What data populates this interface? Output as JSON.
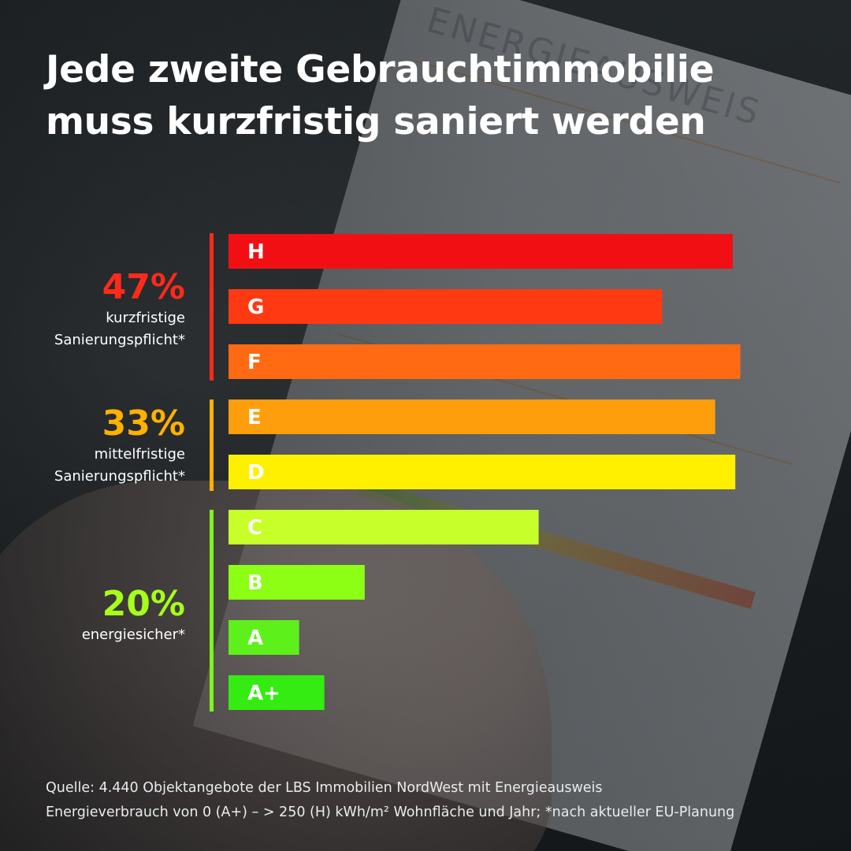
{
  "title": {
    "line1": "Jede zweite Gebrauchtimmobilie",
    "line2": "muss kurzfristig saniert werden"
  },
  "groups": [
    {
      "pct": "47%",
      "desc1": "kurzfristige",
      "desc2": "Sanierungspflicht*",
      "color": "#ff2a1a"
    },
    {
      "pct": "33%",
      "desc1": "mittelfristige",
      "desc2": "Sanierungspflicht*",
      "color": "#ffb100"
    },
    {
      "pct": "20%",
      "desc1": "energiesicher*",
      "desc2": "",
      "color": "#a6ff1a"
    }
  ],
  "footnote": {
    "line1": "Quelle: 4.440 Objektangebote der LBS Immobilien NordWest mit Energieausweis",
    "line2": "Energieverbrauch von 0 (A+) – > 250 (H) kWh/m² Wohnfläche und Jahr; *nach aktueller EU-Planung"
  },
  "chart_data": {
    "type": "bar",
    "orientation": "horizontal",
    "title": "Jede zweite Gebrauchtimmobilie muss kurzfristig saniert werden",
    "categories": [
      "H",
      "G",
      "F",
      "E",
      "D",
      "C",
      "B",
      "A",
      "A+"
    ],
    "values": [
      100,
      86,
      101.5,
      96.5,
      100.5,
      61.5,
      27,
      14,
      19
    ],
    "colors": [
      "#f20f14",
      "#ff3a12",
      "#ff6a12",
      "#ff9e0c",
      "#fff000",
      "#c6ff2a",
      "#8cff14",
      "#5ef01a",
      "#34ec12"
    ],
    "grid": false,
    "legend": "none"
  }
}
